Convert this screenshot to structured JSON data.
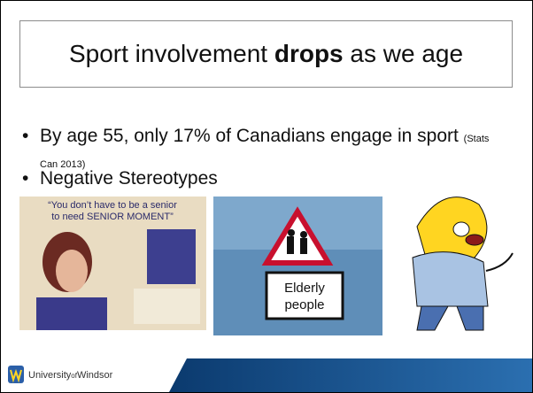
{
  "slide": {
    "title": {
      "before": "Sport involvement ",
      "bold": "drops",
      "after": " as we age"
    },
    "bullets": [
      {
        "text": "By age 55, only 17% of Canadians engage in sport",
        "note": "(Stats Can 2013)"
      },
      {
        "text": "Negative Stereotypes"
      }
    ],
    "poster_text": [
      "“You don’t have to be a senior",
      "to need SENIOR MOMENT”"
    ],
    "sign_text": [
      "Elderly",
      "people"
    ],
    "footer": {
      "university": "University",
      "of": "of",
      "windsor": "Windsor"
    }
  }
}
